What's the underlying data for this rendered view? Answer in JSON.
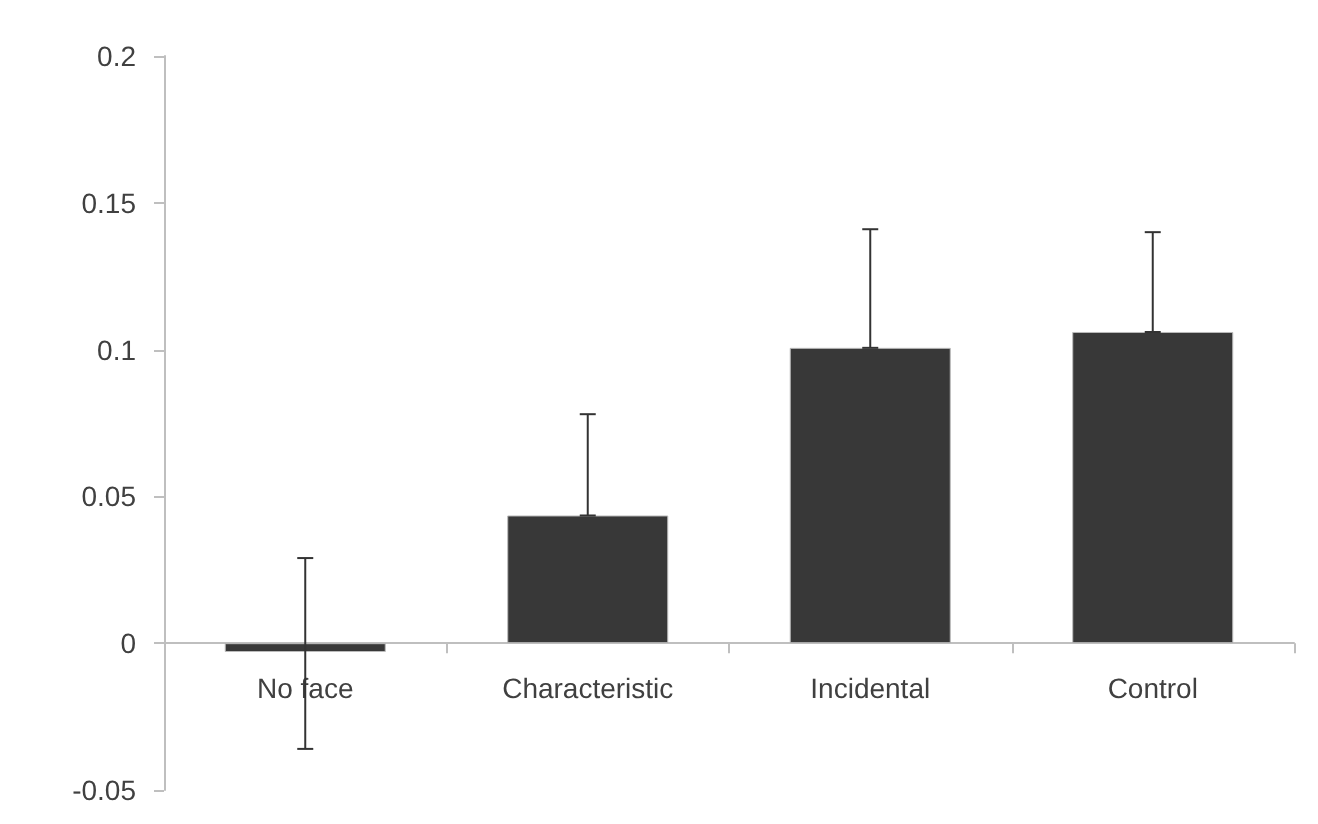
{
  "chart_data": {
    "type": "bar",
    "categories": [
      "No face",
      "Characteristic",
      "Incidental",
      "Control"
    ],
    "values": [
      -0.003,
      0.0435,
      0.1006,
      0.106
    ],
    "errors": [
      [
        -0.036,
        0.029
      ],
      [
        0.0435,
        0.078
      ],
      [
        0.1006,
        0.141
      ],
      [
        0.106,
        0.14
      ]
    ],
    "color": "#383838",
    "ylim": [
      -0.05,
      0.2
    ],
    "yticks": [
      -0.05,
      0,
      0.05,
      0.1,
      0.15,
      0.2
    ]
  }
}
